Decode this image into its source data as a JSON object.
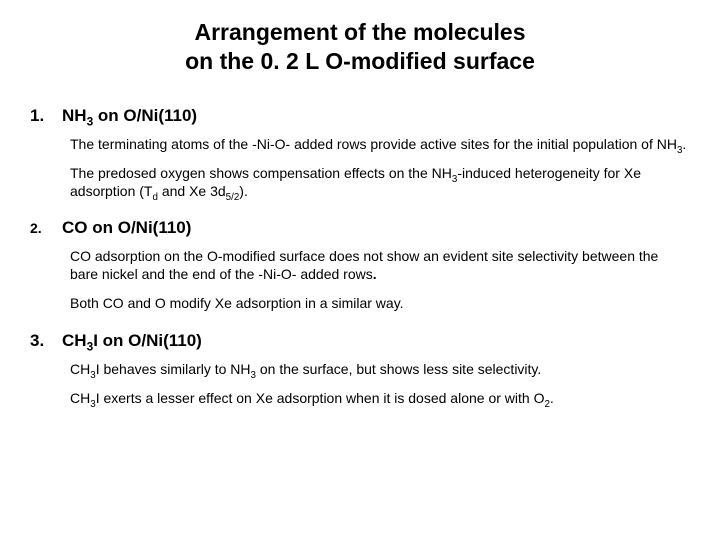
{
  "title_line1": "Arrangement of the molecules",
  "title_line2": "on the 0. 2 L O-modified surface",
  "sections": {
    "s1": {
      "num": "1.",
      "heading_html": "NH<sub>3</sub> on O/Ni(110)",
      "p1_html": "The terminating atoms of the -Ni-O- added rows provide active sites for the initial population of NH<sub>3</sub>.",
      "p2_html": "The predosed oxygen shows compensation effects on the NH<sub>3</sub>-induced heterogeneity for Xe adsorption (T<sub>d</sub> and Xe 3d<sub>5/2</sub>)."
    },
    "s2": {
      "num": "2.",
      "heading_html": "CO on O/Ni(110)",
      "p1_html": "CO adsorption on the O-modified surface does not show an evident site selectivity between the bare nickel and the end of the -Ni-O- added rows<span class=\"bolddot\">.</span>",
      "p2_html": "Both CO and O modify Xe adsorption in a similar way."
    },
    "s3": {
      "num": "3.",
      "heading_html": "CH<sub>3</sub>I on O/Ni(110)",
      "p1_html": "CH<sub>3</sub>I behaves similarly to NH<sub>3</sub> on the surface, but shows less site selectivity.",
      "p2_html": "CH<sub>3</sub>I exerts a lesser effect on Xe adsorption when it is dosed alone or with O<sub>2</sub>."
    }
  }
}
